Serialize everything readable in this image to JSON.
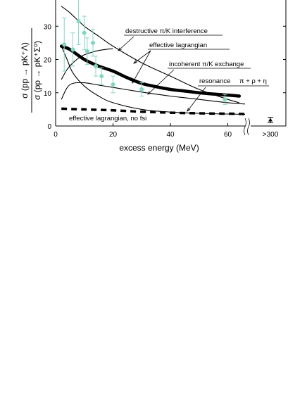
{
  "chart_data": {
    "type": "line",
    "xlabel": "excess energy (MeV)",
    "ylabel_numerator": "σ (pp → pK⁺Λ)",
    "ylabel_denominator": "σ (pp → pK⁺Σ⁰)",
    "xlim": [
      0,
      66
    ],
    "ylim": [
      0,
      40
    ],
    "x_ticks": [
      0,
      20,
      40,
      60
    ],
    "y_ticks": [
      0,
      10,
      20,
      30
    ],
    "axis_break_label": ">300",
    "series": [
      {
        "name": "destructive π/K interference",
        "style": "thin",
        "x": [
          2,
          5,
          10,
          15,
          20,
          30,
          40,
          50,
          60,
          64
        ],
        "y": [
          36,
          34,
          30,
          27,
          24,
          19,
          15,
          11,
          8,
          7
        ]
      },
      {
        "name": "effective lagrangian",
        "style": "thick",
        "x": [
          2,
          5,
          10,
          15,
          20,
          25,
          30,
          35,
          40,
          45,
          50,
          55,
          60,
          64
        ],
        "y": [
          24,
          23,
          20,
          18,
          16.5,
          14.5,
          12.8,
          11.8,
          11,
          10.5,
          10,
          9.6,
          9.3,
          9
        ]
      },
      {
        "name": "effective lagrangian (thin)",
        "style": "thin",
        "x": [
          2,
          4,
          6,
          9,
          12,
          15,
          18,
          20
        ],
        "y": [
          14,
          17,
          19,
          21,
          22,
          22.7,
          23.1,
          23.2
        ]
      },
      {
        "name": "incoherent π/K exchange",
        "style": "thin",
        "x": [
          2,
          4,
          6,
          10,
          15,
          20,
          30,
          40,
          50,
          60,
          66
        ],
        "y": [
          8,
          11.5,
          12.8,
          13,
          12.3,
          11.6,
          10.2,
          9,
          8,
          7,
          6.6
        ]
      },
      {
        "name": "resonance π+ρ+η",
        "style": "thin",
        "x": [
          2,
          4,
          6,
          10,
          15,
          20,
          30,
          40,
          50,
          60,
          66
        ],
        "y": [
          24,
          20,
          16,
          12,
          9,
          7,
          5,
          4.2,
          3.8,
          3.6,
          3.5
        ]
      },
      {
        "name": "effective lagrangian, no fsi",
        "style": "dashed",
        "x": [
          2,
          10,
          20,
          30,
          40,
          50,
          60,
          66
        ],
        "y": [
          5.2,
          5.0,
          4.7,
          4.3,
          4.0,
          3.8,
          3.7,
          3.6
        ]
      }
    ],
    "data_points": [
      {
        "x": 3,
        "y": 24.5,
        "err": 8
      },
      {
        "x": 6,
        "y": 23,
        "err": 5
      },
      {
        "x": 8,
        "y": 31.5,
        "err": 7
      },
      {
        "x": 10,
        "y": 28,
        "err": 5
      },
      {
        "x": 11,
        "y": 22.5,
        "err": 4
      },
      {
        "x": 13,
        "y": 25,
        "err": 4
      },
      {
        "x": 14,
        "y": 18,
        "err": 3
      },
      {
        "x": 16,
        "y": 15,
        "err": 2.5
      },
      {
        "x": 20,
        "y": 12.5,
        "err": 2.5
      },
      {
        "x": 30,
        "y": 11,
        "err": 2
      },
      {
        "x": 59,
        "y": 8,
        "err": 1.5
      }
    ],
    "break_point": {
      "label": ">300",
      "y": 1.8,
      "err": 0.8
    },
    "annotations": [
      {
        "text": "destructive π/K interference",
        "target": "destructive π/K interference"
      },
      {
        "text": "effective lagrangian",
        "target": "effective lagrangian"
      },
      {
        "text": "incoherent π/K exchange",
        "target": "incoherent π/K exchange"
      },
      {
        "text": "resonance",
        "target": "resonance π+ρ+η"
      },
      {
        "text": "π + ρ + η",
        "target": "resonance π+ρ+η"
      },
      {
        "text": "effective lagrangian, no fsi",
        "target": "effective lagrangian, no fsi"
      }
    ],
    "colors": {
      "data_points": "#7fd8c0",
      "lines": "#000000"
    }
  }
}
